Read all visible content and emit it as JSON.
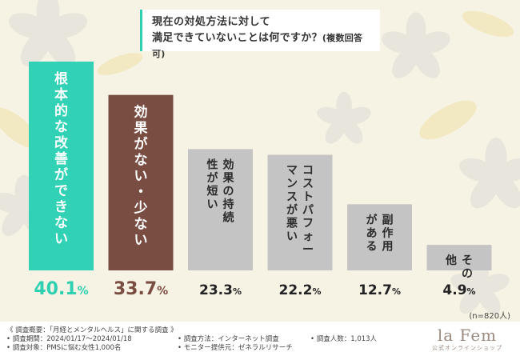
{
  "title": {
    "line1": "現在の対処方法に対して",
    "line2": "満足できていないことは何ですか？",
    "line2_note": "(複数回答可)"
  },
  "sample_note": "(n=820人)",
  "footer": {
    "col1": [
      "《 調査概要：「月経とメンタルヘルス」に関する調査 》",
      "• 調査期間：2024/01/17～2024/01/18",
      "• 調査対象：PMSに悩む女性1,000名"
    ],
    "col2": [
      "• 調査方法：インターネット調査",
      "• モニター提供元：ゼネラルリサーチ"
    ],
    "col3": [
      "• 調査人数：1,013人"
    ],
    "logo_main": "la Fem",
    "logo_sub": "公式オンラインショップ"
  },
  "colors": {
    "bar_first": "#30d1b5",
    "bar_second": "#7a4d42",
    "bar_rest": "#c4c4c4",
    "value_first": "#2fcfb1",
    "value_second": "#7a4d42",
    "value_rest": "#222222"
  },
  "chart_data": {
    "type": "bar",
    "categories": [
      "根本的な改善ができない",
      "効果がない・少ない",
      "効果の持続性が短い",
      "コストパフォーマンスが悪い",
      "副作用がある",
      "その他"
    ],
    "values": [
      40.1,
      33.7,
      23.3,
      22.2,
      12.7,
      4.9
    ],
    "value_labels": [
      "40.1%",
      "33.7%",
      "23.3%",
      "22.2%",
      "12.7%",
      "4.9%"
    ],
    "ylim": [
      0,
      40.1
    ],
    "grid": false,
    "legend": "none"
  }
}
